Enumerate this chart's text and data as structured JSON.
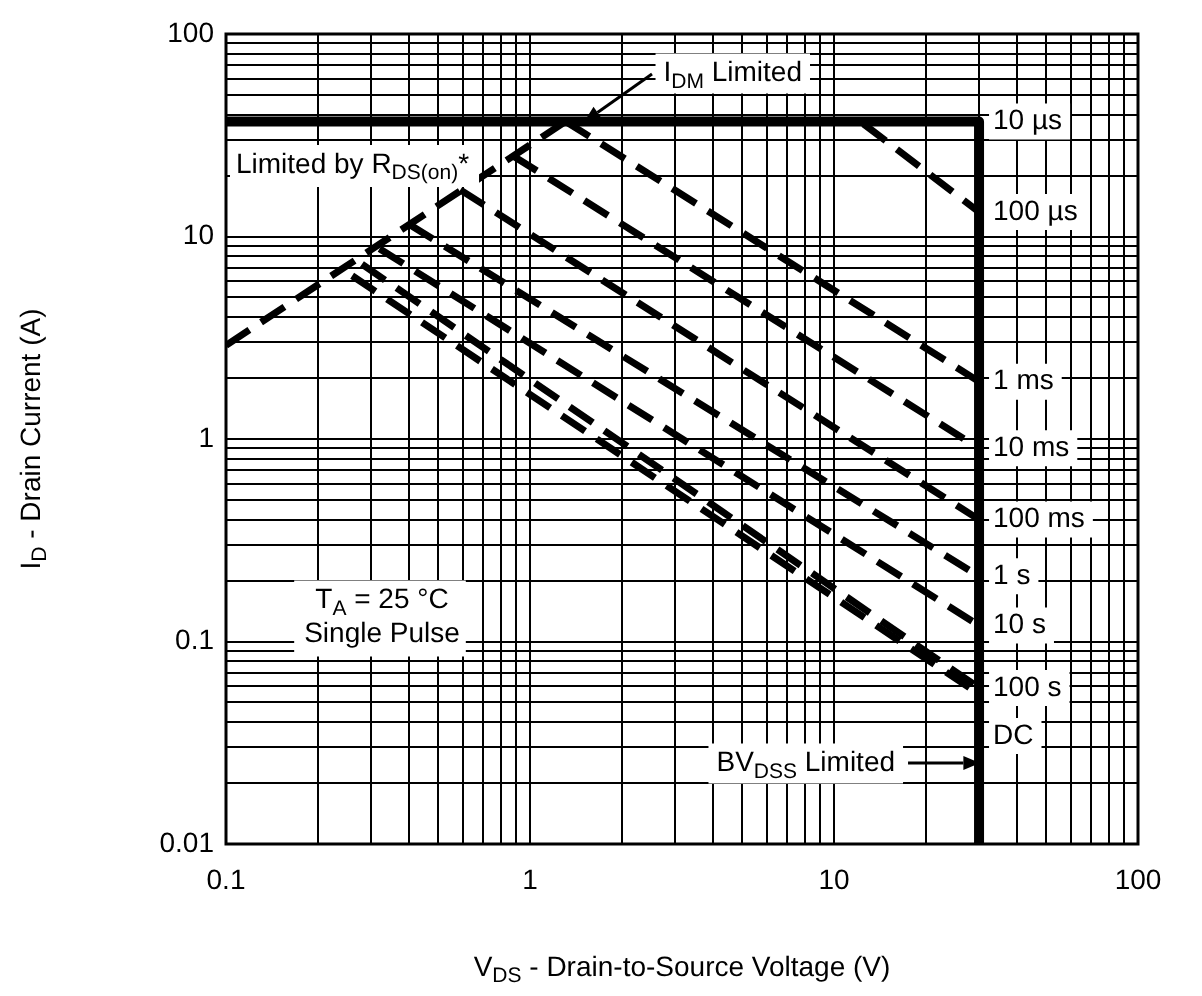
{
  "chart_data": {
    "type": "line",
    "xlabel": "V$_{DS}$ - Drain-to-Source Voltage (V)",
    "ylabel": "I$_{D}$ - Drain Current (A)",
    "log": "xy",
    "grid": true,
    "legend": false,
    "marker": "none",
    "xlim": [
      0.1,
      100
    ],
    "ylim": [
      0.01,
      100
    ],
    "xticks": [
      0.1,
      {
        "value": 0.2,
        "label": null
      },
      {
        "value": 0.3,
        "label": null
      },
      {
        "value": 0.4,
        "label": null
      },
      {
        "value": 0.5,
        "label": null
      },
      {
        "value": 0.6,
        "label": null
      },
      {
        "value": 0.7,
        "label": null
      },
      {
        "value": 0.8,
        "label": null
      },
      {
        "value": 0.9,
        "label": null
      },
      1,
      {
        "value": 2,
        "label": null
      },
      {
        "value": 3,
        "label": null
      },
      {
        "value": 4,
        "label": null
      },
      {
        "value": 5,
        "label": null
      },
      {
        "value": 6,
        "label": null
      },
      {
        "value": 7,
        "label": null
      },
      {
        "value": 8,
        "label": null
      },
      {
        "value": 9,
        "label": null
      },
      10,
      {
        "value": 20,
        "label": null
      },
      {
        "value": 30,
        "label": null
      },
      {
        "value": 40,
        "label": null
      },
      {
        "value": 50,
        "label": null
      },
      {
        "value": 60,
        "label": null
      },
      {
        "value": 70,
        "label": null
      },
      {
        "value": 80,
        "label": null
      },
      {
        "value": 90,
        "label": null
      },
      100
    ],
    "yticks": [
      0.01,
      {
        "value": 0.02,
        "label": null
      },
      {
        "value": 0.03,
        "label": null
      },
      {
        "value": 0.04,
        "label": null
      },
      {
        "value": 0.05,
        "label": null
      },
      {
        "value": 0.06,
        "label": null
      },
      {
        "value": 0.07,
        "label": null
      },
      {
        "value": 0.08,
        "label": null
      },
      {
        "value": 0.09,
        "label": null
      },
      0.1,
      {
        "value": 0.2,
        "label": null
      },
      {
        "value": 0.3,
        "label": null
      },
      {
        "value": 0.4,
        "label": null
      },
      {
        "value": 0.5,
        "label": null
      },
      {
        "value": 0.6,
        "label": null
      },
      {
        "value": 0.7,
        "label": null
      },
      {
        "value": 0.8,
        "label": null
      },
      {
        "value": 0.9,
        "label": null
      },
      1,
      {
        "value": 2,
        "label": null
      },
      {
        "value": 3,
        "label": null
      },
      {
        "value": 4,
        "label": null
      },
      {
        "value": 5,
        "label": null
      },
      {
        "value": 6,
        "label": null
      },
      {
        "value": 7,
        "label": null
      },
      {
        "value": 8,
        "label": null
      },
      {
        "value": 9,
        "label": null
      },
      10,
      {
        "value": 20,
        "label": null
      },
      {
        "value": 30,
        "label": null
      },
      {
        "value": 40,
        "label": null
      },
      {
        "value": 50,
        "label": null
      },
      {
        "value": 60,
        "label": null
      },
      {
        "value": 70,
        "label": null
      },
      {
        "value": 80,
        "label": null
      },
      {
        "value": 90,
        "label": null
      },
      100
    ],
    "series": [
      {
        "name": "10 µs",
        "color": "#000000",
        "line_style": "solid",
        "x": [
          0.1,
          30,
          30
        ],
        "values": [
          37,
          37,
          0.01
        ]
      },
      {
        "color": "#000000",
        "line_style": "dashed",
        "x": [
          0.1,
          1.31
        ],
        "values": [
          2.9,
          37
        ]
      },
      {
        "name": "100 µs",
        "color": "#000000",
        "line_style": "dashed",
        "x": [
          12.5,
          30
        ],
        "values": [
          36,
          13.2
        ]
      },
      {
        "name": "1 ms",
        "color": "#000000",
        "line_style": "dashed",
        "x": [
          1.31,
          30
        ],
        "values": [
          37,
          1.92
        ]
      },
      {
        "name": "10 ms",
        "color": "#000000",
        "line_style": "dashed",
        "x": [
          0.88,
          30
        ],
        "values": [
          25,
          0.9
        ]
      },
      {
        "name": "100 ms",
        "color": "#000000",
        "line_style": "dashed",
        "x": [
          0.59,
          30
        ],
        "values": [
          17,
          0.4
        ]
      },
      {
        "name": "1 s",
        "color": "#000000",
        "line_style": "dashed",
        "x": [
          0.4,
          30
        ],
        "values": [
          11.5,
          0.21
        ]
      },
      {
        "name": "10 s",
        "color": "#000000",
        "line_style": "dashed",
        "x": [
          0.32,
          30
        ],
        "values": [
          8.7,
          0.12
        ]
      },
      {
        "name": "100 s",
        "color": "#000000",
        "line_style": "dashed",
        "x": [
          0.28,
          30
        ],
        "values": [
          7.3,
          0.059
        ]
      },
      {
        "name": "DC",
        "color": "#000000",
        "line_style": "dashed",
        "x": [
          0.26,
          30
        ],
        "values": [
          6.4,
          0.055
        ]
      }
    ],
    "annotations": [
      {
        "text": "I$_{DM}$ Limited",
        "x": 1.5,
        "y": 37
      },
      "Limited by R$_{DS(on)}$*",
      "T$_{A}$ = 25 °C\nSingle Pulse",
      {
        "text": "BV$_{DSS}$ Limited",
        "x": 30,
        "y": 0.025
      }
    ]
  }
}
